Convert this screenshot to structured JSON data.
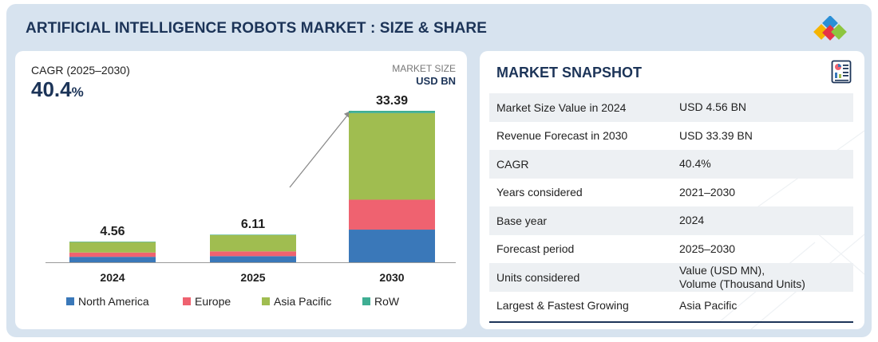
{
  "header": {
    "title": "ARTIFICIAL INTELLIGENCE ROBOTS MARKET : SIZE & SHARE"
  },
  "cagr": {
    "label": "CAGR (2025–2030)",
    "value": "40.4",
    "unit": "%"
  },
  "market_size": {
    "label": "MARKET SIZE",
    "unit": "USD BN"
  },
  "chart_data": {
    "type": "bar",
    "stacked": true,
    "categories": [
      "2024",
      "2025",
      "2030"
    ],
    "totals": [
      4.56,
      6.11,
      33.39
    ],
    "total_labels": [
      "4.56",
      "6.11",
      "33.39"
    ],
    "series": [
      {
        "name": "North America",
        "color": "#3a78b9",
        "values": [
          1.2,
          1.35,
          7.2
        ]
      },
      {
        "name": "Europe",
        "color": "#ef6270",
        "values": [
          0.95,
          1.05,
          6.6
        ]
      },
      {
        "name": "Asia Pacific",
        "color": "#a0bd50",
        "values": [
          2.31,
          3.61,
          19.09
        ]
      },
      {
        "name": "RoW",
        "color": "#3fae93",
        "values": [
          0.1,
          0.1,
          0.5
        ]
      }
    ],
    "ylim": [
      0,
      33.39
    ],
    "xlabel": "",
    "ylabel": ""
  },
  "snapshot": {
    "title": "MARKET SNAPSHOT",
    "rows": [
      {
        "key": "Market Size Value in 2024",
        "value": "USD 4.56 BN"
      },
      {
        "key": "Revenue Forecast in 2030",
        "value": "USD 33.39 BN"
      },
      {
        "key": "CAGR",
        "value": "40.4%"
      },
      {
        "key": "Years considered",
        "value": "2021–2030"
      },
      {
        "key": "Base year",
        "value": "2024"
      },
      {
        "key": "Forecast period",
        "value": "2025–2030"
      },
      {
        "key": "Units considered",
        "value": "Value (USD MN),\nVolume (Thousand Units)"
      },
      {
        "key": "Largest & Fastest Growing",
        "value": "Asia Pacific"
      }
    ]
  },
  "colors": {
    "brand_navy": "#1c3458",
    "frame_bg": "#d7e3ef",
    "logo_blue": "#2a8fd6",
    "logo_red": "#e63346",
    "logo_green": "#8dc63f",
    "logo_yellow": "#f5b400"
  }
}
